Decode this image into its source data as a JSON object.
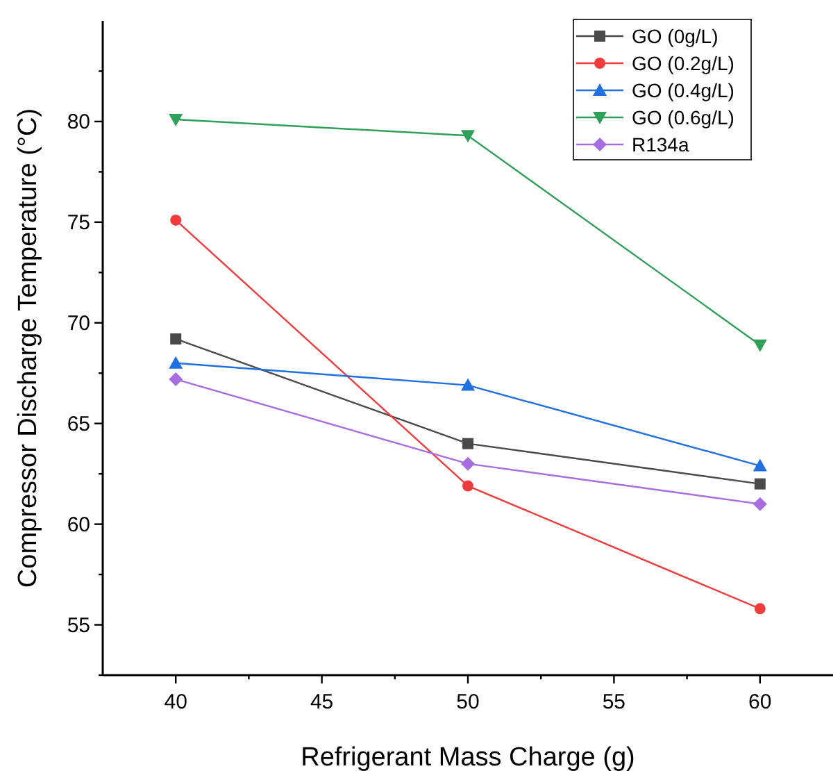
{
  "chart_data": {
    "type": "line",
    "xlabel": "Refrigerant Mass Charge (g)",
    "ylabel": "Compressor Discharge Temperature (°C)",
    "x": [
      40,
      50,
      60
    ],
    "xlim": [
      37.5,
      62.5
    ],
    "xticks": [
      40,
      {
        "value": 42.5,
        "label": null
      },
      45,
      {
        "value": 47.5,
        "label": null
      },
      50,
      {
        "value": 52.5,
        "label": null
      },
      55,
      {
        "value": 57.5,
        "label": null
      },
      60
    ],
    "ylim": [
      52.5,
      85
    ],
    "yticks": [
      {
        "value": 52.5,
        "label": null
      },
      55,
      {
        "value": 57.5,
        "label": null
      },
      60,
      {
        "value": 62.5,
        "label": null
      },
      65,
      {
        "value": 67.5,
        "label": null
      },
      70,
      {
        "value": 72.5,
        "label": null
      },
      75,
      {
        "value": 77.5,
        "label": null
      },
      80,
      {
        "value": 82.5,
        "label": null
      }
    ],
    "grid": false,
    "legend": "top right",
    "line_style": "solid",
    "series": [
      {
        "name": "GO (0g/L)",
        "color": "#4a4a4a",
        "marker": "square",
        "values": [
          69.2,
          64.0,
          62.0
        ]
      },
      {
        "name": "GO (0.2g/L)",
        "color": "#f03c3c",
        "marker": "circle",
        "values": [
          75.1,
          61.9,
          55.8
        ]
      },
      {
        "name": "GO (0.4g/L)",
        "color": "#1f6fe0",
        "marker": "triangle",
        "values": [
          68.0,
          66.9,
          62.9
        ]
      },
      {
        "name": "GO (0.6g/L)",
        "color": "#2ea05a",
        "marker": "triangle-down",
        "values": [
          80.1,
          79.3,
          68.9
        ]
      },
      {
        "name": "R134a",
        "color": "#a86de0",
        "marker": "diamond",
        "values": [
          67.2,
          63.0,
          61.0
        ]
      }
    ]
  }
}
